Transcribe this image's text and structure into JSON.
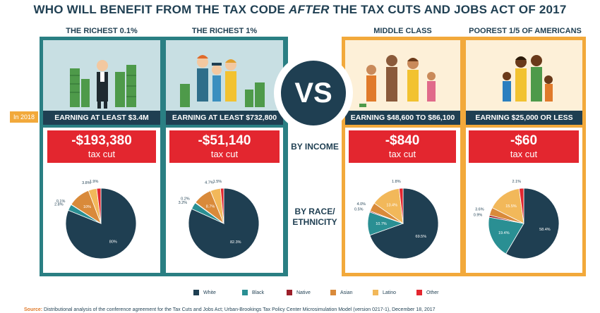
{
  "header": {
    "title_pre": "WHO WILL BENEFIT FROM THE TAX CODE ",
    "title_em": "AFTER",
    "title_post": " THE TAX CUTS AND JOBS ACT OF 2017"
  },
  "vs_label": "VS",
  "year_tag": "In 2018",
  "row_labels": {
    "income": "BY INCOME",
    "race": "BY RACE/ ETHNICITY"
  },
  "colors": {
    "White": "#1f3f52",
    "Black": "#2a8f93",
    "Native": "#9c1f2a",
    "Asian": "#d98a3a",
    "Latino": "#f2b85a",
    "Other": "#e3262f"
  },
  "legend": [
    {
      "name": "White",
      "color": "#1f3f52"
    },
    {
      "name": "Black",
      "color": "#2a8f93"
    },
    {
      "name": "Native",
      "color": "#9c1f2a"
    },
    {
      "name": "Asian",
      "color": "#d98a3a"
    },
    {
      "name": "Latino",
      "color": "#f2b85a"
    },
    {
      "name": "Other",
      "color": "#e3262f"
    }
  ],
  "source": {
    "label": "Source:",
    "text": " Distributional analysis of the conference agreement for the Tax Cuts and Jobs Act; Urban-Brookings Tax Policy Center Microsimulation Model (version 0217-1), December 18, 2017"
  },
  "chart_data": [
    {
      "type": "pie",
      "group": "THE RICHEST 0.1%",
      "earning": "EARNING AT LEAST $3.4M",
      "tax_cut": "-$193,380",
      "tax_cut_label": "tax cut",
      "slices": [
        {
          "name": "White",
          "value": 80,
          "label": "80%"
        },
        {
          "name": "Black",
          "value": 2.8,
          "label": "2.8%"
        },
        {
          "name": "Native",
          "value": 0.1,
          "label": "0.1%"
        },
        {
          "name": "Asian",
          "value": 10,
          "label": "10%"
        },
        {
          "name": "Latino",
          "value": 3.8,
          "label": "3.8%"
        },
        {
          "name": "Other",
          "value": 1.9,
          "label": "1.9%"
        }
      ]
    },
    {
      "type": "pie",
      "group": "THE RICHEST 1%",
      "earning": "EARNING AT LEAST $732,800",
      "tax_cut": "-$51,140",
      "tax_cut_label": "tax cut",
      "slices": [
        {
          "name": "White",
          "value": 82.3,
          "label": "82.3%"
        },
        {
          "name": "Black",
          "value": 3.2,
          "label": "3.2%"
        },
        {
          "name": "Native",
          "value": 0.2,
          "label": "0.2%"
        },
        {
          "name": "Asian",
          "value": 8.7,
          "label": "8.7%"
        },
        {
          "name": "Latino",
          "value": 4.7,
          "label": "4.7%"
        },
        {
          "name": "Other",
          "value": 1.5,
          "label": "1.5%"
        }
      ]
    },
    {
      "type": "pie",
      "group": "MIDDLE CLASS",
      "earning": "EARNING $48,600 TO $86,100",
      "tax_cut": "-$840",
      "tax_cut_label": "tax cut",
      "slices": [
        {
          "name": "White",
          "value": 69.5,
          "label": "69.5%"
        },
        {
          "name": "Black",
          "value": 10.7,
          "label": "10.7%"
        },
        {
          "name": "Native",
          "value": 0.5,
          "label": "0.5%"
        },
        {
          "name": "Asian",
          "value": 4.0,
          "label": "4.0%"
        },
        {
          "name": "Latino",
          "value": 13.4,
          "label": "13.4%"
        },
        {
          "name": "Other",
          "value": 1.8,
          "label": "1.8%"
        }
      ]
    },
    {
      "type": "pie",
      "group": "POOREST 1/5 OF AMERICANS",
      "earning": "EARNING $25,000 OR LESS",
      "tax_cut": "-$60",
      "tax_cut_label": "tax cut",
      "slices": [
        {
          "name": "White",
          "value": 58.4,
          "label": "58.4%"
        },
        {
          "name": "Black",
          "value": 19.4,
          "label": "19.4%"
        },
        {
          "name": "Native",
          "value": 0.9,
          "label": "0.9%"
        },
        {
          "name": "Asian",
          "value": 3.6,
          "label": "3.6%"
        },
        {
          "name": "Latino",
          "value": 15.5,
          "label": "15.5%"
        },
        {
          "name": "Other",
          "value": 2.1,
          "label": "2.1%"
        }
      ]
    }
  ]
}
